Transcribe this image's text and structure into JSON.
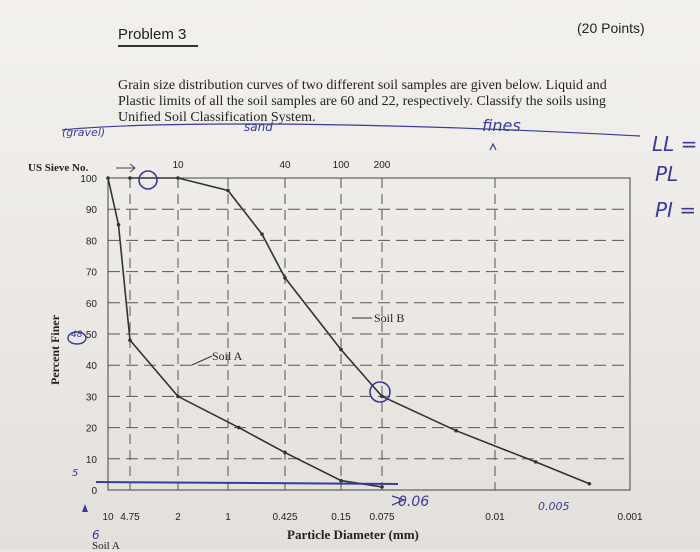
{
  "header": {
    "problem_title": "Problem 3",
    "points": "(20 Points)"
  },
  "statement": {
    "line1": "Grain size distribution curves of two different soil samples are given below. Liquid and",
    "line2": "Plastic limits of all the soil samples are 60 and 22, respectively. Classify the soils using",
    "line3": "Unified Soil Classification System."
  },
  "annotations": {
    "gravel": "(gravel)",
    "sand": "sand",
    "fines": "fines",
    "ll": "LL =",
    "pl": "PL",
    "pi": "PI =",
    "sieve_006": "0.06",
    "sieve_0005": "0.005",
    "val_48": "48",
    "val_6": "6",
    "val_5": "5",
    "soil_a_bottom": "Soil A"
  },
  "chart_data": {
    "type": "line",
    "title": "",
    "xlabel": "Particle Diameter (mm)",
    "ylabel": "Percent Finer",
    "x_scale": "log-reversed",
    "sieve_label": "US Sieve No.",
    "sieve_ticks": [
      "10",
      "40",
      "100",
      "200"
    ],
    "x_tick_labels": [
      "10",
      "4.75",
      "2",
      "1",
      "0.425",
      "0.15",
      "0.075",
      "0.01",
      "0.001"
    ],
    "y_ticks": [
      "0",
      "10",
      "20",
      "30",
      "40",
      "50",
      "60",
      "70",
      "80",
      "90",
      "100"
    ],
    "ylim": [
      0,
      100
    ],
    "grid": true,
    "series": [
      {
        "name": "Soil A",
        "points": [
          [
            10,
            100
          ],
          [
            7,
            85
          ],
          [
            4.75,
            48
          ],
          [
            2,
            30
          ],
          [
            0.85,
            20
          ],
          [
            0.425,
            12
          ],
          [
            0.15,
            3
          ],
          [
            0.075,
            1
          ]
        ]
      },
      {
        "name": "Soil B",
        "points": [
          [
            4.75,
            100
          ],
          [
            2.0,
            100
          ],
          [
            1.0,
            96
          ],
          [
            0.6,
            82
          ],
          [
            0.425,
            68
          ],
          [
            0.15,
            45
          ],
          [
            0.075,
            30
          ],
          [
            0.02,
            19
          ],
          [
            0.005,
            9
          ],
          [
            0.002,
            2
          ]
        ]
      }
    ]
  }
}
